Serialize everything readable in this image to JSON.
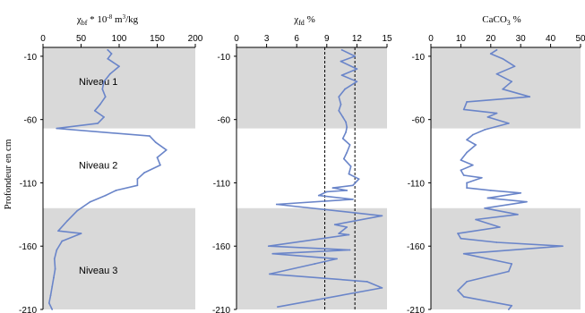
{
  "y_axis_label": "Profondeur en cm",
  "colors": {
    "series": "#6a85c9",
    "band": "#d9d9d9",
    "axis": "#000000",
    "ref_line": "#000000"
  },
  "bands": [
    {
      "from": -3,
      "to": -67
    },
    {
      "from": -130,
      "to": -210
    }
  ],
  "levels": [
    {
      "label": "Niveau 1",
      "depth": -30
    },
    {
      "label": "Niveau 2",
      "depth": -96
    },
    {
      "label": "Niveau 3",
      "depth": -179
    }
  ],
  "chart_data": [
    {
      "type": "line",
      "title": "χbf * 10-8 m3/kg",
      "title_parts": {
        "main": "χ",
        "sub": "bf",
        "mid": " * 10",
        "sup1": "-8",
        "unit": " m",
        "sup2": "3",
        "tail": "/kg"
      },
      "xlim": [
        0,
        200
      ],
      "xticks": [
        0,
        50,
        100,
        150,
        200
      ],
      "ylim": [
        -210,
        -3
      ],
      "yticks": [
        -10,
        -60,
        -110,
        -160,
        -210
      ],
      "grid": false,
      "points": [
        [
          85,
          -5
        ],
        [
          90,
          -8
        ],
        [
          85,
          -12
        ],
        [
          100,
          -18
        ],
        [
          88,
          -24
        ],
        [
          80,
          -30
        ],
        [
          78,
          -36
        ],
        [
          82,
          -42
        ],
        [
          75,
          -48
        ],
        [
          68,
          -53
        ],
        [
          80,
          -58
        ],
        [
          72,
          -63
        ],
        [
          18,
          -67
        ],
        [
          140,
          -73
        ],
        [
          148,
          -78
        ],
        [
          162,
          -84
        ],
        [
          150,
          -90
        ],
        [
          154,
          -96
        ],
        [
          133,
          -102
        ],
        [
          124,
          -107
        ],
        [
          124,
          -112
        ],
        [
          96,
          -116
        ],
        [
          82,
          -120
        ],
        [
          62,
          -125
        ],
        [
          45,
          -132
        ],
        [
          32,
          -140
        ],
        [
          20,
          -148
        ],
        [
          50,
          -150
        ],
        [
          25,
          -156
        ],
        [
          18,
          -163
        ],
        [
          15,
          -170
        ],
        [
          16,
          -178
        ],
        [
          14,
          -185
        ],
        [
          12,
          -192
        ],
        [
          10,
          -199
        ],
        [
          8,
          -205
        ],
        [
          12,
          -210
        ]
      ]
    },
    {
      "type": "line",
      "title": "χfd %",
      "title_parts": {
        "main": "χ",
        "sub": "fd",
        "tail": " %"
      },
      "xlim": [
        0,
        15
      ],
      "xticks": [
        0,
        3,
        6,
        9,
        12,
        15
      ],
      "ylim": [
        -210,
        -3
      ],
      "yticks": [
        -10,
        -60,
        -110,
        -160,
        -210
      ],
      "grid": false,
      "ref_lines": [
        8.8,
        11.8
      ],
      "points": [
        [
          10.5,
          -5
        ],
        [
          11.8,
          -10
        ],
        [
          10.4,
          -14
        ],
        [
          12.0,
          -20
        ],
        [
          10.5,
          -25
        ],
        [
          12.0,
          -30
        ],
        [
          10.8,
          -36
        ],
        [
          10.2,
          -42
        ],
        [
          10.4,
          -48
        ],
        [
          10.2,
          -53
        ],
        [
          10.6,
          -58
        ],
        [
          10.9,
          -62
        ],
        [
          11.0,
          -66
        ],
        [
          10.9,
          -70
        ],
        [
          10.6,
          -75
        ],
        [
          11.3,
          -80
        ],
        [
          11.0,
          -86
        ],
        [
          10.7,
          -91
        ],
        [
          11.4,
          -97
        ],
        [
          11.2,
          -103
        ],
        [
          12.2,
          -107
        ],
        [
          11.6,
          -112
        ],
        [
          9.6,
          -114
        ],
        [
          11.0,
          -116
        ],
        [
          9.0,
          -117
        ],
        [
          8.2,
          -120
        ],
        [
          11.6,
          -123
        ],
        [
          4.0,
          -127
        ],
        [
          14.5,
          -136
        ],
        [
          9.8,
          -143
        ],
        [
          11.0,
          -145
        ],
        [
          10.2,
          -150
        ],
        [
          11.2,
          -151
        ],
        [
          3.2,
          -160
        ],
        [
          11.3,
          -163
        ],
        [
          3.6,
          -166
        ],
        [
          10.0,
          -170
        ],
        [
          7.8,
          -174
        ],
        [
          3.3,
          -182
        ],
        [
          13.0,
          -188
        ],
        [
          14.5,
          -193
        ],
        [
          4.1,
          -208
        ]
      ]
    },
    {
      "type": "line",
      "title": "CaCO3 %",
      "title_parts": {
        "main": "CaCO",
        "sub": "3",
        "tail": " %"
      },
      "xlim": [
        0,
        50
      ],
      "xticks": [
        0,
        10,
        20,
        30,
        40,
        50
      ],
      "ylim": [
        -210,
        -3
      ],
      "yticks": [
        -10,
        -60,
        -110,
        -160,
        -210
      ],
      "grid": false,
      "points": [
        [
          22,
          -5
        ],
        [
          20,
          -8
        ],
        [
          24,
          -12
        ],
        [
          28,
          -18
        ],
        [
          22,
          -24
        ],
        [
          27,
          -30
        ],
        [
          24,
          -36
        ],
        [
          33,
          -42
        ],
        [
          12,
          -46
        ],
        [
          11,
          -52
        ],
        [
          22,
          -55
        ],
        [
          19,
          -58
        ],
        [
          26,
          -63
        ],
        [
          18,
          -68
        ],
        [
          14,
          -72
        ],
        [
          12,
          -76
        ],
        [
          15,
          -80
        ],
        [
          12,
          -86
        ],
        [
          10,
          -92
        ],
        [
          14,
          -96
        ],
        [
          10,
          -100
        ],
        [
          11,
          -104
        ],
        [
          17,
          -106
        ],
        [
          12,
          -110
        ],
        [
          12,
          -114
        ],
        [
          20,
          -116
        ],
        [
          30,
          -118
        ],
        [
          19,
          -122
        ],
        [
          32,
          -125
        ],
        [
          18,
          -130
        ],
        [
          29,
          -135
        ],
        [
          15,
          -139
        ],
        [
          23,
          -145
        ],
        [
          9,
          -150
        ],
        [
          10,
          -154
        ],
        [
          22,
          -157
        ],
        [
          44,
          -160
        ],
        [
          11,
          -166
        ],
        [
          27,
          -174
        ],
        [
          26,
          -180
        ],
        [
          12,
          -188
        ],
        [
          9,
          -195
        ],
        [
          11,
          -200
        ],
        [
          27,
          -207
        ],
        [
          26,
          -210
        ]
      ]
    }
  ]
}
